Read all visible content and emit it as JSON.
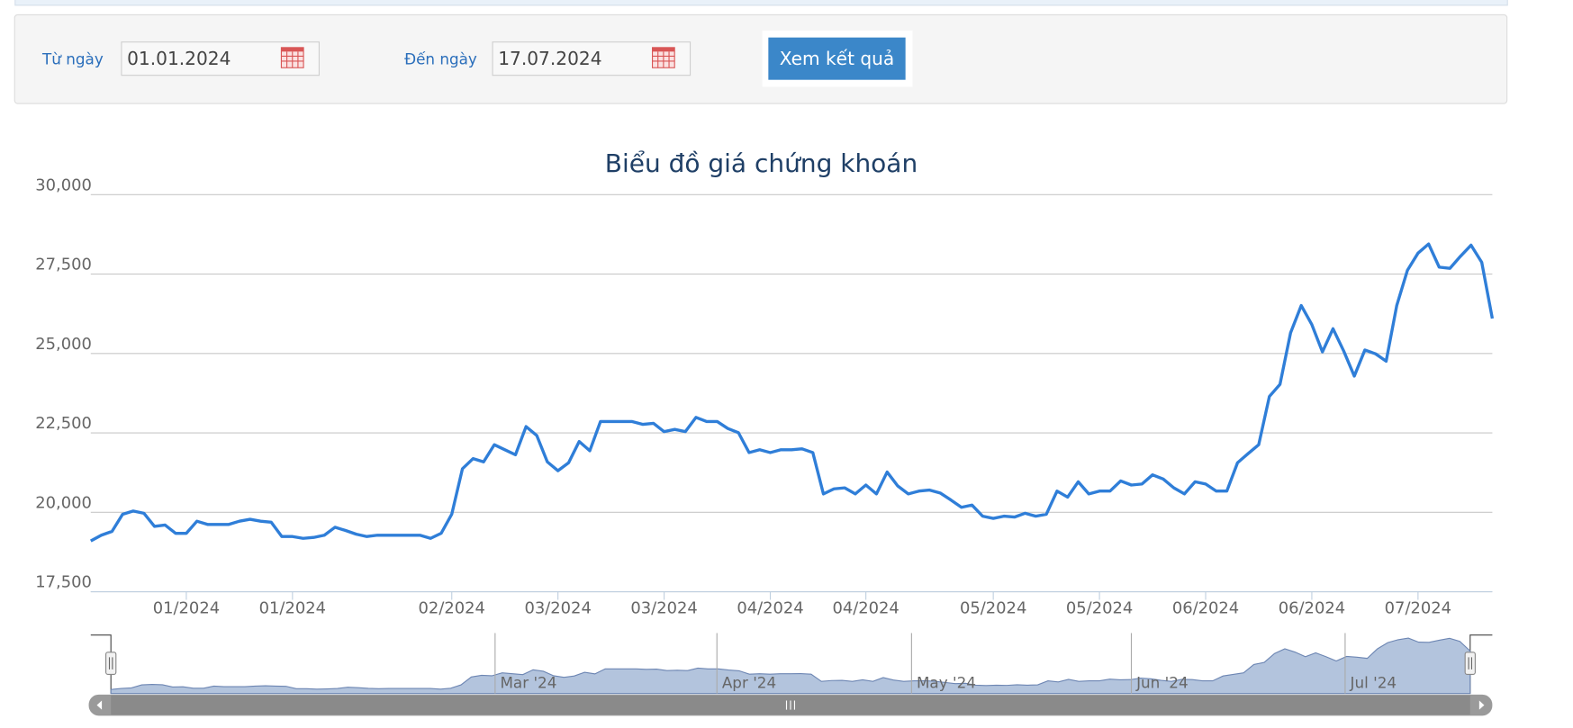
{
  "form": {
    "from_label": "Từ ngày",
    "from_value": "01.01.2024",
    "to_label": "Đến ngày",
    "to_value": "17.07.2024",
    "button": "Xem kết quả"
  },
  "chart_data": {
    "type": "line",
    "title": "Biểu đồ giá chứng khoán",
    "color": "#2f7ed8",
    "grid": true,
    "categories": [
      null,
      null,
      null,
      null,
      null,
      null,
      null,
      null,
      null,
      "01/2024",
      null,
      null,
      null,
      null,
      null,
      null,
      null,
      null,
      null,
      "01/2024",
      null,
      null,
      null,
      null,
      null,
      null,
      null,
      null,
      null,
      null,
      null,
      null,
      null,
      null,
      "02/2024",
      null,
      null,
      null,
      null,
      null,
      null,
      null,
      null,
      null,
      "03/2024",
      null,
      null,
      null,
      null,
      null,
      null,
      null,
      null,
      null,
      "03/2024",
      null,
      null,
      null,
      null,
      null,
      null,
      null,
      null,
      null,
      "04/2024",
      null,
      null,
      null,
      null,
      null,
      null,
      null,
      null,
      "04/2024",
      null,
      null,
      null,
      null,
      null,
      null,
      null,
      null,
      null,
      null,
      null,
      "05/2024",
      null,
      null,
      null,
      null,
      null,
      null,
      null,
      null,
      null,
      "05/2024",
      null,
      null,
      null,
      null,
      null,
      null,
      null,
      null,
      null,
      "06/2024",
      null,
      null,
      null,
      null,
      null,
      null,
      null,
      null,
      null,
      "06/2024",
      null,
      null,
      null,
      null,
      null,
      null,
      null,
      null,
      null,
      "07/2024",
      null,
      null,
      null,
      null,
      null,
      null,
      null
    ],
    "values": [
      19100,
      19280,
      19400,
      19940,
      20040,
      19970,
      19560,
      19600,
      19340,
      19340,
      19720,
      19620,
      19620,
      19620,
      19720,
      19780,
      19720,
      19690,
      19240,
      19240,
      19180,
      19210,
      19280,
      19530,
      19430,
      19310,
      19240,
      19280,
      19280,
      19280,
      19280,
      19280,
      19180,
      19340,
      19940,
      21370,
      21690,
      21590,
      22130,
      21970,
      21810,
      22700,
      22420,
      21590,
      21310,
      21560,
      22230,
      21940,
      22860,
      22860,
      22860,
      22860,
      22770,
      22800,
      22540,
      22610,
      22540,
      22990,
      22860,
      22860,
      22640,
      22510,
      21880,
      21970,
      21880,
      21970,
      21970,
      22000,
      21880,
      20580,
      20740,
      20770,
      20580,
      20860,
      20580,
      21270,
      20830,
      20580,
      20670,
      20700,
      20610,
      20390,
      20160,
      20230,
      19880,
      19810,
      19880,
      19850,
      19970,
      19880,
      19940,
      20670,
      20480,
      20960,
      20580,
      20670,
      20670,
      20990,
      20860,
      20890,
      21180,
      21050,
      20770,
      20580,
      20960,
      20890,
      20670,
      20670,
      21560,
      21850,
      22130,
      23650,
      24030,
      25650,
      26510,
      25910,
      25050,
      25780,
      25080,
      24290,
      25110,
      24990,
      24760,
      26510,
      27620,
      28160,
      28450,
      27720,
      27680,
      28060,
      28410,
      27870,
      26100
    ],
    "ylim": [
      17500,
      30000
    ],
    "yticks": [
      {
        "value": 17500,
        "label": "17,500"
      },
      {
        "value": 20000,
        "label": "20,000"
      },
      {
        "value": 22500,
        "label": "22,500"
      },
      {
        "value": 25000,
        "label": "25,000"
      },
      {
        "value": 27500,
        "label": "27,500"
      },
      {
        "value": 30000,
        "label": "30,000"
      }
    ],
    "navigator": {
      "labels": [
        "Mar '24",
        "Apr '24",
        "May '24",
        "Jun '24",
        "Jul '24"
      ]
    }
  }
}
